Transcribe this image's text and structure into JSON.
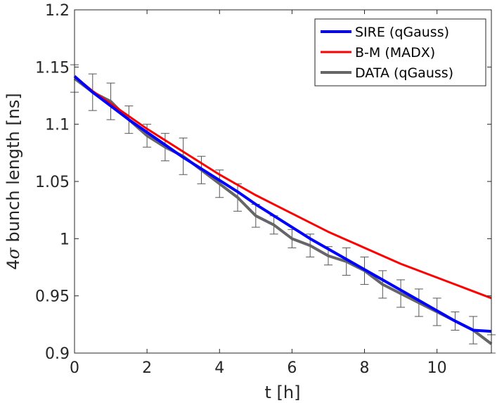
{
  "chart_data": {
    "type": "line",
    "title": "",
    "xlabel": "t [h]",
    "ylabel_prefix": "4",
    "ylabel_symbol": "σ",
    "ylabel_suffix": " bunch length [ns]",
    "xlim": [
      0,
      11.5
    ],
    "ylim": [
      0.9,
      1.2
    ],
    "xticks": [
      0,
      2,
      4,
      6,
      8,
      10
    ],
    "xtick_labels": [
      "0",
      "2",
      "4",
      "6",
      "8",
      "10"
    ],
    "yticks": [
      0.9,
      0.95,
      1.0,
      1.05,
      1.1,
      1.15,
      1.2
    ],
    "ytick_labels": [
      "0.9",
      "0.95",
      "1",
      "1.05",
      "1.1",
      "1.15",
      "1.2"
    ],
    "grid": false,
    "legend_position": "top-right",
    "series": [
      {
        "name": "SIRE (qGauss)",
        "color": "#0000ff",
        "x": [
          0,
          0.5,
          1,
          1.5,
          2,
          2.5,
          3,
          3.5,
          4,
          4.5,
          5,
          5.5,
          6,
          6.5,
          7,
          7.5,
          8,
          8.5,
          9,
          9.5,
          10,
          10.5,
          11,
          11.5
        ],
        "values": [
          1.142,
          1.128,
          1.116,
          1.104,
          1.093,
          1.082,
          1.071,
          1.061,
          1.051,
          1.041,
          1.03,
          1.02,
          1.01,
          1.0,
          0.991,
          0.982,
          0.973,
          0.964,
          0.955,
          0.946,
          0.937,
          0.928,
          0.92,
          0.919
        ]
      },
      {
        "name": "B-M (MADX)",
        "color": "#ff0000",
        "x": [
          0,
          0.5,
          1,
          1.5,
          2,
          2.5,
          3,
          3.5,
          4,
          4.5,
          5,
          5.5,
          6,
          6.5,
          7,
          7.5,
          8,
          8.5,
          9,
          9.5,
          10,
          10.5,
          11,
          11.5
        ],
        "values": [
          1.142,
          1.129,
          1.118,
          1.107,
          1.096,
          1.086,
          1.076,
          1.066,
          1.056,
          1.047,
          1.038,
          1.03,
          1.022,
          1.014,
          1.006,
          0.999,
          0.992,
          0.985,
          0.978,
          0.972,
          0.966,
          0.96,
          0.954,
          0.948
        ]
      },
      {
        "name": "DATA (qGauss)",
        "color": "#666666",
        "x": [
          0,
          0.5,
          1,
          1.5,
          2,
          2.5,
          3,
          3.5,
          4,
          4.5,
          5,
          5.5,
          6,
          6.5,
          7,
          7.5,
          8,
          8.5,
          9,
          9.5,
          10,
          10.5,
          11,
          11.5
        ],
        "values": [
          1.14,
          1.128,
          1.12,
          1.104,
          1.09,
          1.08,
          1.072,
          1.06,
          1.048,
          1.036,
          1.02,
          1.012,
          1.0,
          0.994,
          0.985,
          0.98,
          0.972,
          0.96,
          0.952,
          0.944,
          0.936,
          0.928,
          0.92,
          0.908
        ],
        "error": [
          0.012,
          0.016,
          0.016,
          0.012,
          0.01,
          0.012,
          0.016,
          0.012,
          0.012,
          0.012,
          0.01,
          0.008,
          0.008,
          0.01,
          0.008,
          0.012,
          0.012,
          0.012,
          0.012,
          0.012,
          0.012,
          0.008,
          0.012,
          0.008
        ]
      }
    ]
  }
}
